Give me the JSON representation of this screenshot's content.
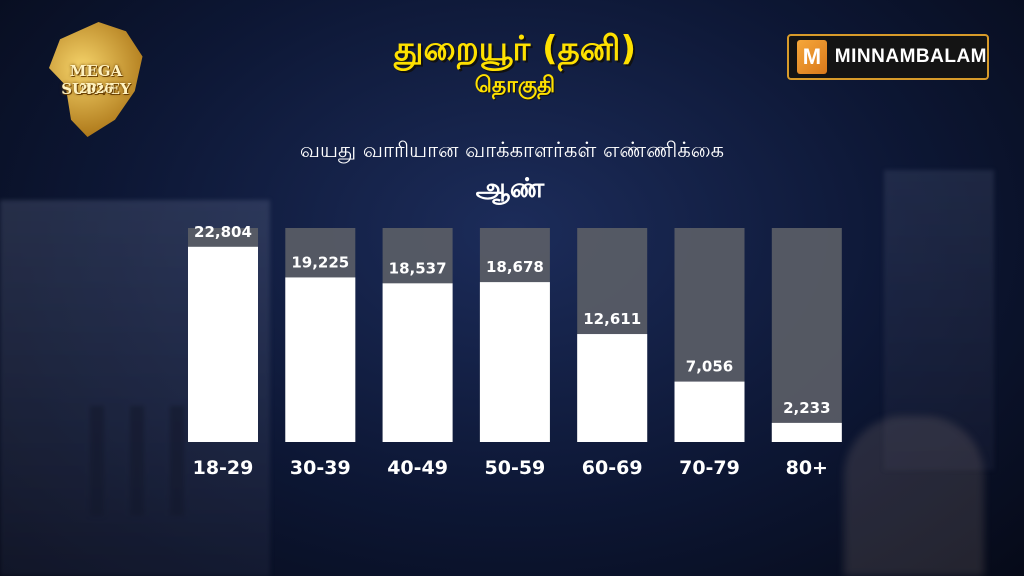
{
  "logo": {
    "line1": "MEGA SURVEY",
    "line2": "2026",
    "icon": "tamil-nadu-map-icon"
  },
  "brand": {
    "name": "MINNAMBALAM",
    "mark": "M",
    "accent": "#f39c2b"
  },
  "header": {
    "title": "துறையூர் (தனி)",
    "subtitle": "தொகுதி",
    "heading": "வயது வாரியான வாக்காளர்கள் எண்ணிக்கை",
    "gender": "ஆண்"
  },
  "colors": {
    "title": "#ffe100",
    "bar_fill": "#ffffff",
    "bar_track": "#5a5d66"
  },
  "chart_data": {
    "type": "bar",
    "title": "வயது வாரியான வாக்காளர்கள் எண்ணிக்கை",
    "subtitle": "ஆண்",
    "categories": [
      "18-29",
      "30-39",
      "40-49",
      "50-59",
      "60-69",
      "70-79",
      "80+"
    ],
    "values": [
      22804,
      19225,
      18537,
      18678,
      12611,
      7056,
      2233
    ],
    "value_labels": [
      "22,804",
      "19,225",
      "18,537",
      "18,678",
      "12,611",
      "7,056",
      "2,233"
    ],
    "ylim": [
      0,
      25000
    ],
    "grid": false,
    "legend": "none"
  }
}
